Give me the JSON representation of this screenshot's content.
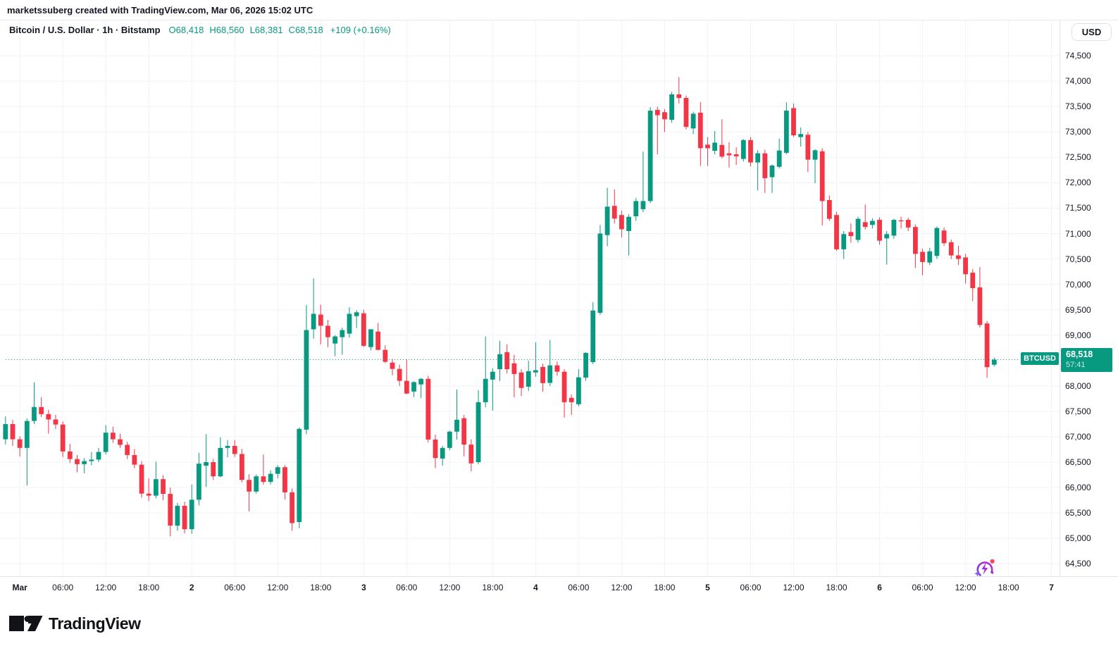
{
  "watermark": "marketssuberg created with TradingView.com, Mar 06, 2026 15:02 UTC",
  "legend": {
    "symbol_title": "Bitcoin / U.S. Dollar · 1h · Bitstamp",
    "ohlc": [
      "O68,418",
      "H68,560",
      "L68,381",
      "C68,518"
    ],
    "change": "+109 (+0.16%)"
  },
  "currency_button": "USD",
  "price_label": {
    "symbol": "BTCUSD",
    "price": "68,518",
    "countdown": "57:41"
  },
  "footer": {
    "brand": "TradingView"
  },
  "colors": {
    "up": "#089981",
    "down": "#F23645",
    "grid": "#F0F3FA",
    "axis_border": "#E0E3EB",
    "text": "#131722",
    "background": "#FFFFFF"
  },
  "price_axis_labels": [
    {
      "p": 74500,
      "text": "74,500"
    },
    {
      "p": 74000,
      "text": "74,000"
    },
    {
      "p": 73500,
      "text": "73,500"
    },
    {
      "p": 73000,
      "text": "73,000"
    },
    {
      "p": 72500,
      "text": "72,500"
    },
    {
      "p": 72000,
      "text": "72,000"
    },
    {
      "p": 71500,
      "text": "71,500"
    },
    {
      "p": 71000,
      "text": "71,000"
    },
    {
      "p": 70500,
      "text": "70,500"
    },
    {
      "p": 70000,
      "text": "70,000"
    },
    {
      "p": 69500,
      "text": "69,500"
    },
    {
      "p": 69000,
      "text": "69,000"
    },
    {
      "p": 68000,
      "text": "68,000"
    },
    {
      "p": 67500,
      "text": "67,500"
    },
    {
      "p": 67000,
      "text": "67,000"
    },
    {
      "p": 66500,
      "text": "66,500"
    },
    {
      "p": 66000,
      "text": "66,000"
    },
    {
      "p": 65500,
      "text": "65,500"
    },
    {
      "p": 65000,
      "text": "65,000"
    },
    {
      "p": 64500,
      "text": "64,500"
    }
  ],
  "time_axis_labels": [
    {
      "i": 2,
      "text": "Mar",
      "bold": true
    },
    {
      "i": 8,
      "text": "06:00",
      "bold": false
    },
    {
      "i": 14,
      "text": "12:00",
      "bold": false
    },
    {
      "i": 20,
      "text": "18:00",
      "bold": false
    },
    {
      "i": 26,
      "text": "2",
      "bold": true
    },
    {
      "i": 32,
      "text": "06:00",
      "bold": false
    },
    {
      "i": 38,
      "text": "12:00",
      "bold": false
    },
    {
      "i": 44,
      "text": "18:00",
      "bold": false
    },
    {
      "i": 50,
      "text": "3",
      "bold": true
    },
    {
      "i": 56,
      "text": "06:00",
      "bold": false
    },
    {
      "i": 62,
      "text": "12:00",
      "bold": false
    },
    {
      "i": 68,
      "text": "18:00",
      "bold": false
    },
    {
      "i": 74,
      "text": "4",
      "bold": true
    },
    {
      "i": 80,
      "text": "06:00",
      "bold": false
    },
    {
      "i": 86,
      "text": "12:00",
      "bold": false
    },
    {
      "i": 92,
      "text": "18:00",
      "bold": false
    },
    {
      "i": 98,
      "text": "5",
      "bold": true
    },
    {
      "i": 104,
      "text": "06:00",
      "bold": false
    },
    {
      "i": 110,
      "text": "12:00",
      "bold": false
    },
    {
      "i": 116,
      "text": "18:00",
      "bold": false
    },
    {
      "i": 122,
      "text": "6",
      "bold": true
    },
    {
      "i": 128,
      "text": "06:00",
      "bold": false
    },
    {
      "i": 134,
      "text": "12:00",
      "bold": false
    },
    {
      "i": 140,
      "text": "18:00",
      "bold": false
    },
    {
      "i": 146,
      "text": "7",
      "bold": true
    }
  ],
  "chart_data": {
    "type": "candlestick",
    "title": "Bitcoin / U.S. Dollar",
    "symbol": "BTCUSD",
    "interval": "1h",
    "exchange": "Bitstamp",
    "open": 68418,
    "high": 68560,
    "low": 68381,
    "close": 68518,
    "change_abs": 109,
    "change_pct": 0.16,
    "last_price": 68518,
    "countdown": "57:41",
    "y_axis_range": [
      64500,
      74500
    ],
    "y_grid_step": 500,
    "x_range_days": [
      "Mar 1",
      "Mar 7"
    ],
    "grid": true,
    "legend_position": "top-left",
    "candles_ohlc": [
      [
        66950,
        67400,
        66850,
        67250
      ],
      [
        67250,
        67330,
        66820,
        66950
      ],
      [
        66950,
        67010,
        66610,
        66780
      ],
      [
        66780,
        67360,
        66040,
        67310
      ],
      [
        67310,
        68070,
        67250,
        67585
      ],
      [
        67585,
        67780,
        67390,
        67445
      ],
      [
        67445,
        67530,
        67060,
        67340
      ],
      [
        67340,
        67430,
        67150,
        67240
      ],
      [
        67240,
        67300,
        66600,
        66710
      ],
      [
        66710,
        66860,
        66480,
        66560
      ],
      [
        66560,
        66640,
        66300,
        66460
      ],
      [
        66460,
        66580,
        66280,
        66520
      ],
      [
        66520,
        66700,
        66440,
        66550
      ],
      [
        66550,
        66780,
        66500,
        66700
      ],
      [
        66700,
        67230,
        66650,
        67080
      ],
      [
        67080,
        67200,
        66880,
        66950
      ],
      [
        66950,
        67060,
        66780,
        66840
      ],
      [
        66840,
        66900,
        66560,
        66640
      ],
      [
        66640,
        66760,
        66380,
        66450
      ],
      [
        66450,
        66520,
        65800,
        65880
      ],
      [
        65880,
        66180,
        65735,
        65840
      ],
      [
        65840,
        66510,
        65790,
        66165
      ],
      [
        66165,
        66240,
        65750,
        65875
      ],
      [
        65875,
        66000,
        65040,
        65250
      ],
      [
        65250,
        65700,
        65150,
        65640
      ],
      [
        65640,
        65720,
        65100,
        65180
      ],
      [
        65180,
        66060,
        65090,
        65760
      ],
      [
        65760,
        66680,
        65650,
        66470
      ],
      [
        66430,
        67050,
        66010,
        66500
      ],
      [
        66500,
        66565,
        66150,
        66220
      ],
      [
        66220,
        66990,
        66200,
        66780
      ],
      [
        66780,
        66935,
        66595,
        66820
      ],
      [
        66820,
        66935,
        66600,
        66660
      ],
      [
        66660,
        66760,
        66100,
        66150
      ],
      [
        66150,
        66260,
        65530,
        65920
      ],
      [
        65920,
        66260,
        65880,
        66220
      ],
      [
        66220,
        66650,
        66060,
        66110
      ],
      [
        66110,
        66340,
        66060,
        66270
      ],
      [
        66270,
        66440,
        66180,
        66400
      ],
      [
        66400,
        66440,
        65765,
        65905
      ],
      [
        65905,
        65980,
        65150,
        65300
      ],
      [
        65320,
        67180,
        65200,
        67155
      ],
      [
        67140,
        69595,
        67050,
        69100
      ],
      [
        69115,
        70115,
        68930,
        69420
      ],
      [
        69405,
        69600,
        68820,
        69185
      ],
      [
        69185,
        69300,
        68765,
        68960
      ],
      [
        68835,
        69000,
        68585,
        68975
      ],
      [
        68960,
        69150,
        68615,
        69100
      ],
      [
        69030,
        69550,
        68950,
        69420
      ],
      [
        69375,
        69490,
        69140,
        69450
      ],
      [
        69430,
        69500,
        68765,
        68790
      ],
      [
        68765,
        69120,
        68700,
        69115
      ],
      [
        69070,
        69240,
        68700,
        68710
      ],
      [
        68710,
        68800,
        68450,
        68475
      ],
      [
        68460,
        68530,
        68210,
        68335
      ],
      [
        68335,
        68420,
        68000,
        68100
      ],
      [
        68100,
        68520,
        67840,
        67850
      ],
      [
        67890,
        68090,
        67780,
        68075
      ],
      [
        68030,
        68160,
        67765,
        68140
      ],
      [
        68140,
        68200,
        66890,
        66945
      ],
      [
        66945,
        67040,
        66380,
        66580
      ],
      [
        66570,
        66820,
        66430,
        66780
      ],
      [
        66780,
        67120,
        66740,
        67100
      ],
      [
        67100,
        67930,
        66945,
        67335
      ],
      [
        67365,
        67430,
        66615,
        66845
      ],
      [
        66845,
        66950,
        66320,
        66475
      ],
      [
        66500,
        67915,
        66460,
        67680
      ],
      [
        67680,
        68975,
        67580,
        68140
      ],
      [
        68125,
        68350,
        67515,
        68280
      ],
      [
        68330,
        68890,
        68100,
        68625
      ],
      [
        68665,
        68820,
        68250,
        68330
      ],
      [
        68445,
        68610,
        67775,
        68235
      ],
      [
        68265,
        68330,
        67800,
        67960
      ],
      [
        67985,
        68500,
        67900,
        68290
      ],
      [
        68265,
        68860,
        68180,
        68310
      ],
      [
        68375,
        68440,
        67890,
        68055
      ],
      [
        68060,
        68905,
        68000,
        68405
      ],
      [
        68405,
        68480,
        68200,
        68280
      ],
      [
        68280,
        68330,
        67375,
        67680
      ],
      [
        67765,
        67830,
        67430,
        67680
      ],
      [
        67640,
        68330,
        67600,
        68170
      ],
      [
        68165,
        68665,
        68100,
        68650
      ],
      [
        68470,
        69650,
        68430,
        69485
      ],
      [
        69440,
        71170,
        69400,
        71000
      ],
      [
        70970,
        71900,
        70750,
        71530
      ],
      [
        71545,
        71870,
        71200,
        71295
      ],
      [
        71365,
        71450,
        70925,
        71085
      ],
      [
        71050,
        71380,
        70570,
        71330
      ],
      [
        71340,
        71700,
        71250,
        71640
      ],
      [
        71480,
        72615,
        71420,
        71640
      ],
      [
        71640,
        73490,
        71600,
        73420
      ],
      [
        73435,
        73500,
        72560,
        73330
      ],
      [
        73390,
        73450,
        73000,
        73250
      ],
      [
        73240,
        73790,
        73180,
        73740
      ],
      [
        73740,
        74080,
        73560,
        73670
      ],
      [
        73670,
        73720,
        73050,
        73100
      ],
      [
        73070,
        73400,
        72960,
        73360
      ],
      [
        73380,
        73590,
        72330,
        72680
      ],
      [
        72750,
        72900,
        72330,
        72680
      ],
      [
        72630,
        73020,
        72560,
        72790
      ],
      [
        72745,
        73250,
        72480,
        72515
      ],
      [
        72580,
        72800,
        72300,
        72540
      ],
      [
        72560,
        72700,
        72350,
        72520
      ],
      [
        72470,
        72860,
        72420,
        72840
      ],
      [
        72840,
        72900,
        72320,
        72400
      ],
      [
        72400,
        72640,
        71850,
        72580
      ],
      [
        72580,
        72650,
        71800,
        72090
      ],
      [
        72110,
        72360,
        71800,
        72340
      ],
      [
        72315,
        72870,
        72280,
        72635
      ],
      [
        72590,
        73585,
        72560,
        73420
      ],
      [
        73470,
        73560,
        72900,
        72935
      ],
      [
        72900,
        73090,
        72710,
        72960
      ],
      [
        72945,
        73000,
        72215,
        72455
      ],
      [
        72455,
        72660,
        71990,
        72640
      ],
      [
        72620,
        72680,
        71160,
        71640
      ],
      [
        71660,
        71750,
        71250,
        71290
      ],
      [
        71365,
        71430,
        70660,
        70690
      ],
      [
        70690,
        71050,
        70500,
        70990
      ],
      [
        71030,
        71200,
        70820,
        70950
      ],
      [
        70875,
        71330,
        70820,
        71290
      ],
      [
        71225,
        71570,
        71080,
        71130
      ],
      [
        71170,
        71300,
        71100,
        71250
      ],
      [
        71270,
        71320,
        70780,
        70860
      ],
      [
        70905,
        71050,
        70390,
        70990
      ],
      [
        70960,
        71290,
        70900,
        71270
      ],
      [
        71260,
        71330,
        71100,
        71240
      ],
      [
        71270,
        71310,
        71050,
        71120
      ],
      [
        71130,
        71180,
        70320,
        70600
      ],
      [
        70640,
        70700,
        70180,
        70440
      ],
      [
        70430,
        70720,
        70380,
        70650
      ],
      [
        70560,
        71140,
        70500,
        71110
      ],
      [
        71060,
        71120,
        70760,
        70810
      ],
      [
        70830,
        70880,
        70500,
        70570
      ],
      [
        70570,
        70760,
        70380,
        70500
      ],
      [
        70530,
        70600,
        70015,
        70200
      ],
      [
        70230,
        70300,
        69670,
        69925
      ],
      [
        69940,
        70340,
        69150,
        69200
      ],
      [
        69230,
        69280,
        68160,
        68370
      ],
      [
        68418,
        68560,
        68381,
        68518
      ]
    ]
  }
}
